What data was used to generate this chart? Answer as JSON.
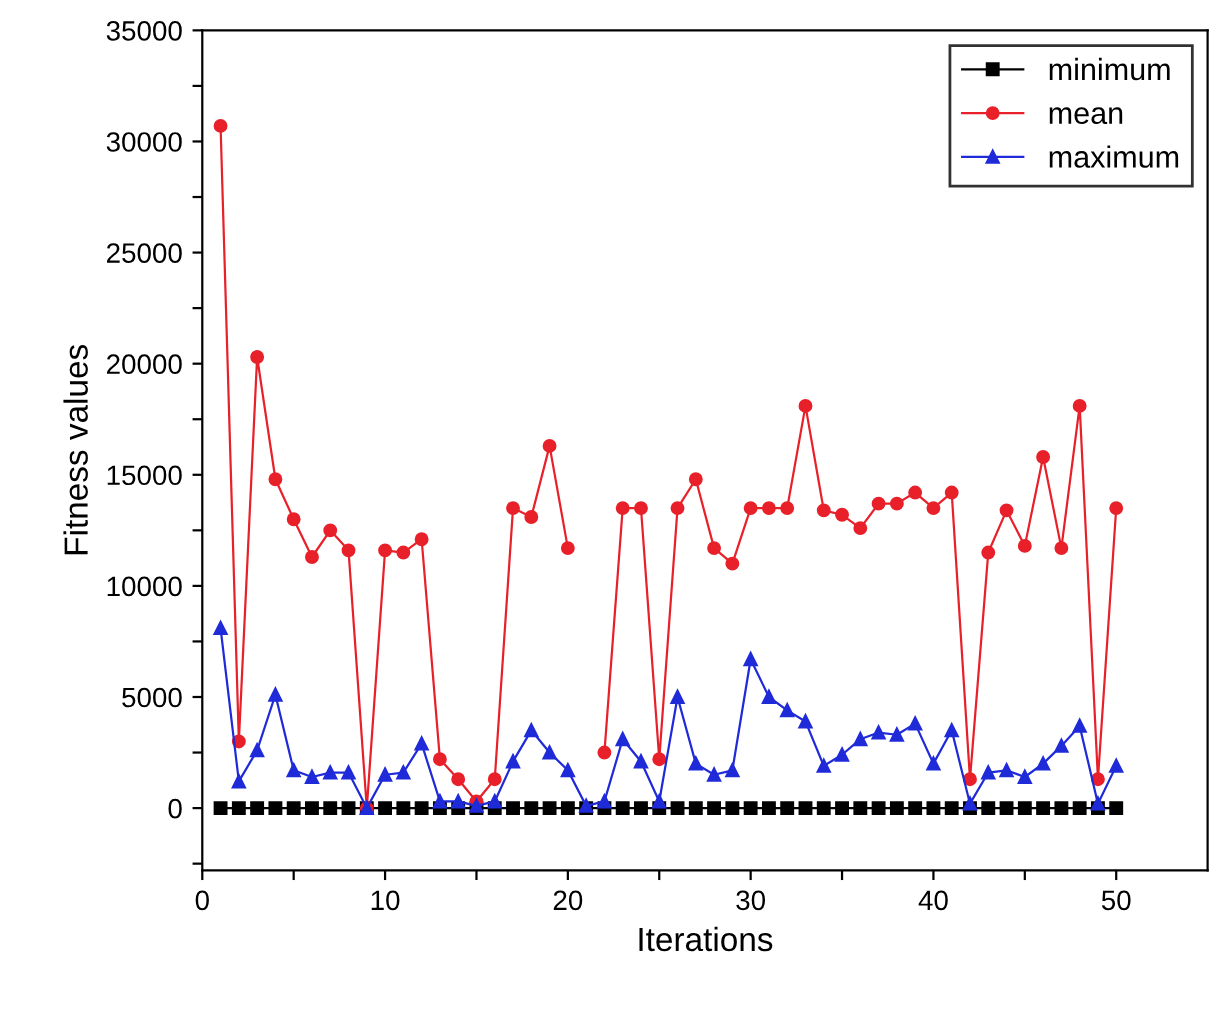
{
  "chart_data": {
    "type": "line",
    "xlabel": "Iterations",
    "ylabel": "Fitness values",
    "x": [
      1,
      2,
      3,
      4,
      5,
      6,
      7,
      8,
      9,
      10,
      11,
      12,
      13,
      14,
      15,
      16,
      17,
      18,
      19,
      20,
      21,
      22,
      23,
      24,
      25,
      26,
      27,
      28,
      29,
      30,
      31,
      32,
      33,
      34,
      35,
      36,
      37,
      38,
      39,
      40,
      41,
      42,
      43,
      44,
      45,
      46,
      47,
      48,
      49,
      50
    ],
    "series": [
      {
        "name": "minimum",
        "color": "#000000",
        "marker": "square",
        "values": [
          0,
          0,
          0,
          0,
          0,
          0,
          0,
          0,
          0,
          0,
          0,
          0,
          0,
          0,
          0,
          0,
          0,
          0,
          0,
          0,
          0,
          0,
          0,
          0,
          0,
          0,
          0,
          0,
          0,
          0,
          0,
          0,
          0,
          0,
          0,
          0,
          0,
          0,
          0,
          0,
          0,
          0,
          0,
          0,
          0,
          0,
          0,
          0,
          0,
          0
        ]
      },
      {
        "name": "mean",
        "color": "#e8202a",
        "marker": "circle",
        "values": [
          30700,
          3000,
          20300,
          14800,
          13000,
          11300,
          12500,
          11600,
          0,
          11600,
          11500,
          12100,
          2200,
          1300,
          300,
          1300,
          13500,
          13100,
          16300,
          11700,
          null,
          2500,
          13500,
          13500,
          2200,
          13500,
          14800,
          11700,
          11000,
          13500,
          13500,
          13500,
          18100,
          13400,
          13200,
          12600,
          13700,
          13700,
          14200,
          13500,
          14200,
          1300,
          11500,
          13400,
          11800,
          15800,
          11700,
          18100,
          1300,
          13500
        ]
      },
      {
        "name": "maximum",
        "color": "#1f2ad8",
        "marker": "triangle",
        "values": [
          8100,
          1200,
          2600,
          5100,
          1700,
          1400,
          1600,
          1600,
          0,
          1500,
          1600,
          2900,
          300,
          300,
          100,
          300,
          2100,
          3500,
          2500,
          1700,
          100,
          300,
          3100,
          2100,
          300,
          5000,
          2000,
          1500,
          1700,
          6700,
          5000,
          4400,
          3900,
          1900,
          2400,
          3100,
          3400,
          3300,
          3800,
          2000,
          3500,
          200,
          1600,
          1700,
          1400,
          2000,
          2800,
          3700,
          200,
          1900
        ]
      }
    ],
    "xlim": [
      0,
      55
    ],
    "xticks": [
      0,
      {
        "value": 5,
        "label": null
      },
      10,
      {
        "value": 15,
        "label": null
      },
      20,
      {
        "value": 25,
        "label": null
      },
      30,
      {
        "value": 35,
        "label": null
      },
      40,
      {
        "value": 45,
        "label": null
      },
      50
    ],
    "ylim": [
      -2800,
      35000
    ],
    "yticks": [
      {
        "value": -2500,
        "label": null
      },
      0,
      {
        "value": 2500,
        "label": null
      },
      5000,
      {
        "value": 7500,
        "label": null
      },
      10000,
      {
        "value": 12500,
        "label": null
      },
      15000,
      {
        "value": 17500,
        "label": null
      },
      20000,
      {
        "value": 22500,
        "label": null
      },
      25000,
      {
        "value": 27500,
        "label": null
      },
      30000,
      {
        "value": 32500,
        "label": null
      },
      35000
    ],
    "legend": "top right",
    "line_style": "solid"
  }
}
